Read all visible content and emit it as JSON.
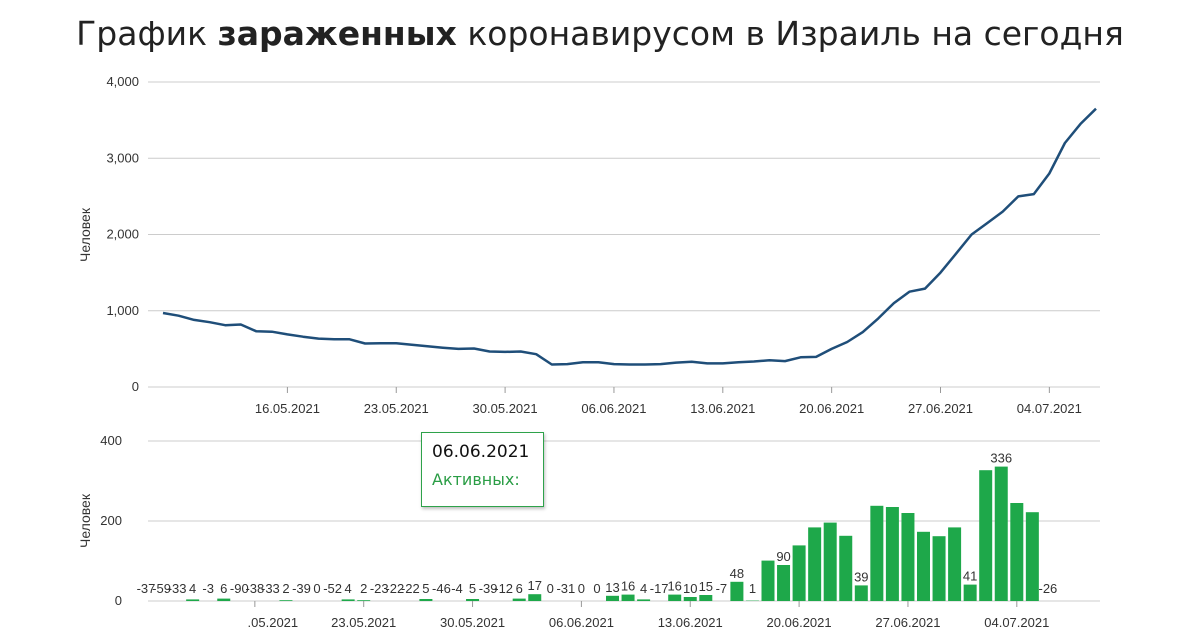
{
  "title": {
    "prefix": "График ",
    "bold": "зараженных",
    "suffix": " коронавирусом в Израиль на сегодня"
  },
  "colors": {
    "line": "#1f4e79",
    "bar": "#1ea84a",
    "grid": "#cccccc",
    "tooltip_label": "#2a9d45"
  },
  "tooltip": {
    "date": "06.06.2021",
    "label": "Активных:"
  },
  "chart_data": [
    {
      "type": "line",
      "ylabel": "Человек",
      "ylim": [
        0,
        4000
      ],
      "yticks": [
        "0",
        "1,000",
        "2,000",
        "3,000",
        "4,000"
      ],
      "ytick_values": [
        0,
        1000,
        2000,
        3000,
        4000
      ],
      "xtick_labels": [
        "16.05.2021",
        "23.05.2021",
        "30.05.2021",
        "06.06.2021",
        "13.06.2021",
        "20.06.2021",
        "27.06.2021",
        "04.07.2021"
      ],
      "x_start": "2021-05-08",
      "values": [
        970,
        935,
        880,
        850,
        810,
        820,
        730,
        725,
        690,
        660,
        635,
        625,
        625,
        570,
        575,
        575,
        555,
        535,
        515,
        500,
        505,
        465,
        460,
        465,
        430,
        295,
        300,
        325,
        325,
        300,
        295,
        295,
        300,
        320,
        330,
        310,
        310,
        325,
        335,
        350,
        340,
        390,
        395,
        500,
        590,
        720,
        900,
        1100,
        1250,
        1290,
        1500,
        1750,
        2000,
        2150,
        2300,
        2500,
        2530,
        2800,
        3200,
        3450,
        3650
      ]
    },
    {
      "type": "bar",
      "ylabel": "Человек",
      "ylim": [
        0,
        400
      ],
      "yticks": [
        "0",
        "200",
        "400"
      ],
      "ytick_values": [
        0,
        200,
        400
      ],
      "xtick_labels": [
        ".05.2021",
        "23.05.2021",
        "30.05.2021",
        "06.06.2021",
        "13.06.2021",
        "20.06.2021",
        "27.06.2021",
        "04.07.2021"
      ],
      "x_start": "2021-05-09",
      "values": [
        -37,
        -59,
        -33,
        4,
        -3,
        6,
        -90,
        -38,
        -33,
        2,
        -39,
        0,
        -52,
        4,
        2,
        -23,
        -22,
        -22,
        5,
        -46,
        -4,
        5,
        -39,
        -12,
        6,
        17,
        0,
        -31,
        0,
        0,
        13,
        16,
        4,
        -17,
        16,
        10,
        15,
        -7,
        48,
        1,
        101,
        90,
        139,
        184,
        196,
        163,
        39,
        238,
        235,
        220,
        173,
        162,
        184,
        41,
        327,
        336,
        245,
        222,
        -26
      ],
      "labels": [
        "-37",
        "-59",
        "-33",
        "4",
        "-3",
        "6",
        "-90",
        "-38",
        "-33",
        "2",
        "-39",
        "0",
        "-52",
        "4",
        "2",
        "-23",
        "-22",
        "-22",
        "5",
        "-46",
        "-4",
        "5",
        "-39",
        "-12",
        "6",
        "17",
        "0",
        "-31",
        "0",
        "0",
        "13",
        "16",
        "4",
        "-17",
        "16",
        "10",
        "15",
        "-7",
        "48",
        "1",
        "",
        "90",
        "",
        "",
        "",
        "",
        "39",
        "",
        "",
        "",
        "",
        "",
        "",
        "41",
        "",
        "336",
        "",
        "",
        "-26"
      ]
    }
  ]
}
